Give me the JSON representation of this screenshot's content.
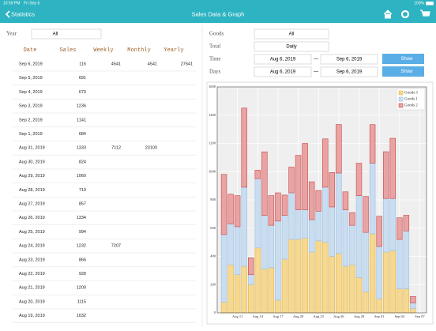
{
  "status_bar": {
    "time": "10:59 PM",
    "date": "Fri Sep 6",
    "battery": "100%"
  },
  "nav": {
    "back": "Statistics",
    "title": "Sales Data & Graph"
  },
  "filter": {
    "year_label": "Year",
    "year_value": "All"
  },
  "table": {
    "columns": [
      "Date",
      "Sales",
      "Weekly",
      "Monthly",
      "Yearly"
    ],
    "rows": [
      [
        "Sep 6, 2019",
        116,
        4541,
        4541,
        27641
      ],
      [
        "Sep 5, 2019",
        691,
        null,
        null,
        null
      ],
      [
        "Sep 4, 2019",
        673,
        null,
        null,
        null
      ],
      [
        "Sep 3, 2019",
        1236,
        null,
        null,
        null
      ],
      [
        "Sep 2, 2019",
        1141,
        null,
        null,
        null
      ],
      [
        "Sep 1, 2019",
        684,
        null,
        null,
        null
      ],
      [
        "Aug 31, 2019",
        1333,
        7112,
        23100,
        null
      ],
      [
        "Aug 30, 2019",
        824,
        null,
        null,
        null
      ],
      [
        "Aug 29, 2019",
        1060,
        null,
        null,
        null
      ],
      [
        "Aug 28, 2019",
        710,
        null,
        null,
        null
      ],
      [
        "Aug 27, 2019",
        857,
        null,
        null,
        null
      ],
      [
        "Aug 26, 2019",
        1334,
        null,
        null,
        null
      ],
      [
        "Aug 25, 2019",
        994,
        null,
        null,
        null
      ],
      [
        "Aug 24, 2019",
        1232,
        7207,
        null,
        null
      ],
      [
        "Aug 23, 2019",
        866,
        null,
        null,
        null
      ],
      [
        "Aug 22, 2019",
        928,
        null,
        null,
        null
      ],
      [
        "Aug 21, 2019",
        1200,
        null,
        null,
        null
      ],
      [
        "Aug 20, 2019",
        1115,
        null,
        null,
        null
      ],
      [
        "Aug 19, 2019",
        1032,
        null,
        null,
        null
      ]
    ]
  },
  "controls": {
    "goods_label": "Goods",
    "goods_value": "All",
    "total_label": "Total",
    "total_value": "Daily",
    "time_label": "Time",
    "time_from": "Aug 6, 2019",
    "time_to": "Sep 6, 2019",
    "days_label": "Days",
    "days_from": "Aug 6, 2019",
    "days_to": "Sep 6, 2019",
    "separator": "—",
    "show": "Show"
  },
  "chart_data": {
    "type": "stacked_bar",
    "x": [
      "Aug 09",
      "Aug 10",
      "Aug 11",
      "Aug 12",
      "Aug 13",
      "Aug 14",
      "Aug 15",
      "Aug 16",
      "Aug 17",
      "Aug 18",
      "Aug 19",
      "Aug 20",
      "Aug 21",
      "Aug 22",
      "Aug 23",
      "Aug 24",
      "Aug 25",
      "Aug 26",
      "Aug 27",
      "Aug 28",
      "Aug 29",
      "Aug 30",
      "Aug 31",
      "Sep 01",
      "Sep 02",
      "Sep 03",
      "Sep 04",
      "Sep 05",
      "Sep 06"
    ],
    "series": [
      {
        "name": "Goods 3",
        "color": "#f6d88f",
        "edge": "#e2b648",
        "values": [
          75,
          340,
          270,
          330,
          200,
          460,
          310,
          320,
          90,
          380,
          520,
          520,
          530,
          430,
          510,
          500,
          400,
          420,
          330,
          340,
          250,
          150,
          560,
          100,
          430,
          440,
          170,
          170,
          30
        ]
      },
      {
        "name": "Goods 1",
        "color": "#c9ddf1",
        "edge": "#9dbfe0",
        "values": [
          480,
          290,
          340,
          560,
          70,
          490,
          380,
          300,
          560,
          310,
          330,
          210,
          200,
          230,
          210,
          390,
          350,
          570,
          400,
          280,
          580,
          420,
          500,
          370,
          380,
          370,
          350,
          410,
          40
        ]
      },
      {
        "name": "Goods 2",
        "color": "#e9a3a3",
        "edge": "#c64848",
        "values": [
          425,
          210,
          220,
          560,
          120,
          60,
          450,
          210,
          200,
          144,
          182,
          385,
          470,
          268,
          146,
          342,
          244,
          344,
          127,
          90,
          230,
          254,
          273,
          214,
          331,
          426,
          153,
          111,
          46
        ]
      }
    ],
    "xlim": [
      "Aug 08",
      "Sep 08"
    ],
    "xticks": [
      "Aug 11",
      "Aug 14",
      "Aug 17",
      "Aug 20",
      "Aug 23",
      "Aug 26",
      "Aug 29",
      "Sep 01",
      "Sep 04",
      "Sep 07"
    ],
    "ylim": [
      0,
      1600
    ],
    "yticks": [
      0,
      200,
      400,
      600,
      800,
      1000,
      1200,
      1400,
      1600
    ],
    "grid": true,
    "legend": "top-right"
  }
}
